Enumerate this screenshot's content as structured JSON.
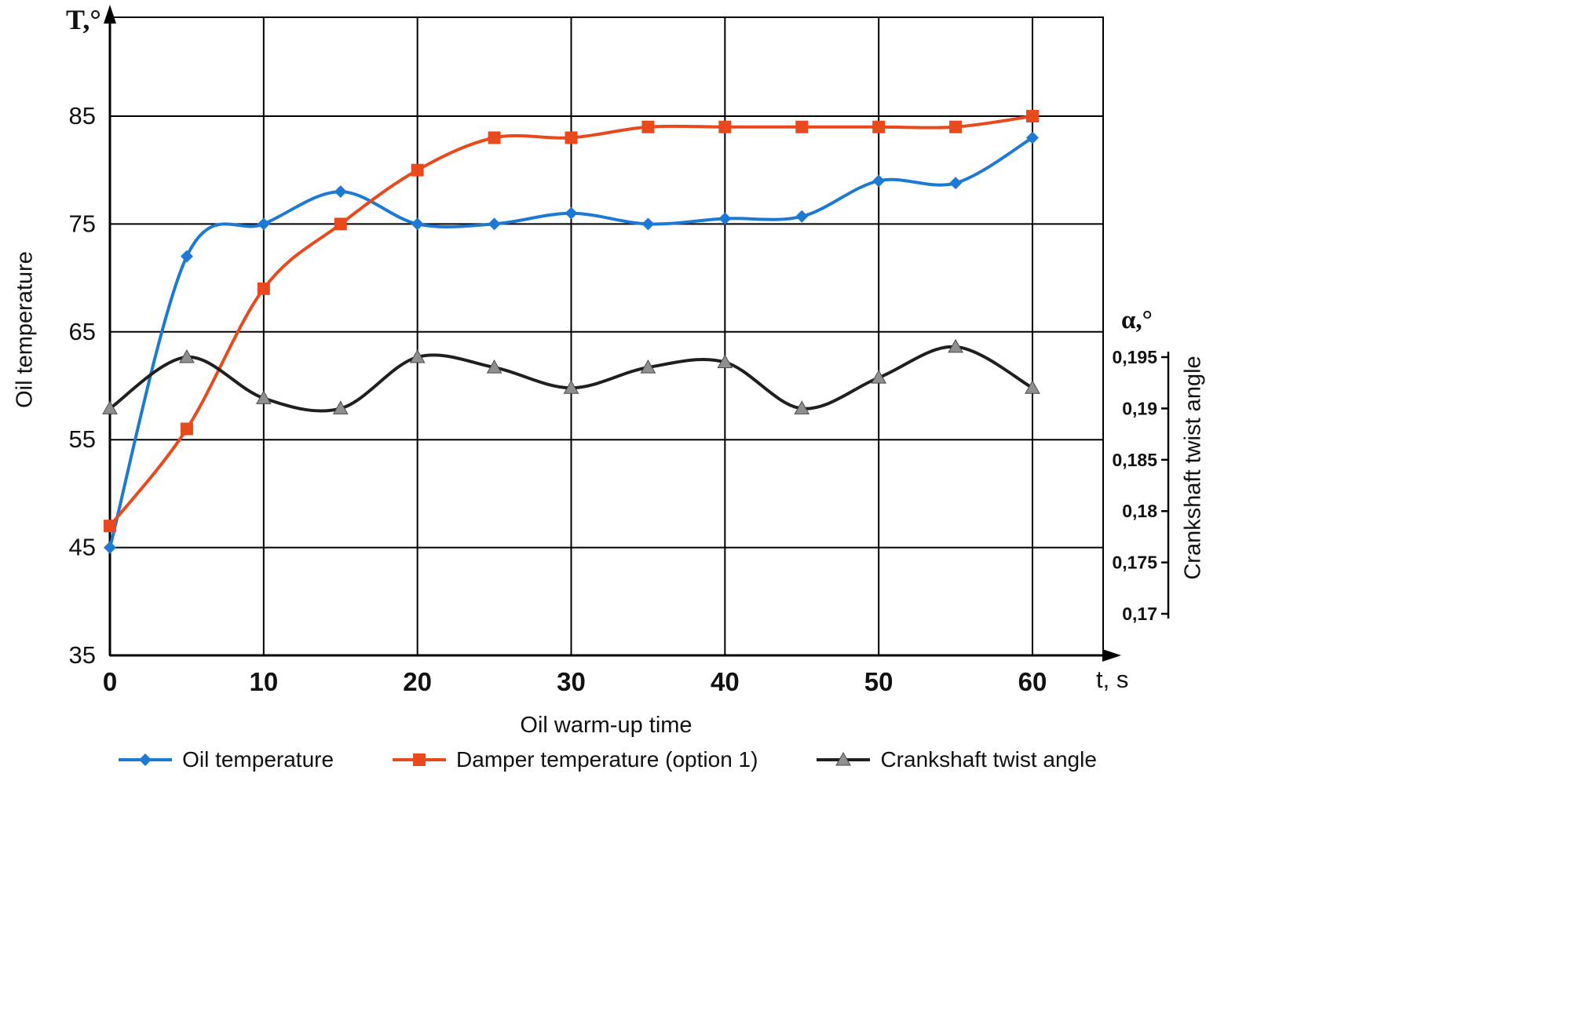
{
  "chart_data": {
    "type": "line",
    "x": [
      0,
      5,
      10,
      15,
      20,
      25,
      30,
      35,
      40,
      45,
      50,
      55,
      60
    ],
    "x_axis": {
      "symbol": "t, s",
      "title": "Oil warm-up time",
      "ticks": [
        0,
        10,
        20,
        30,
        40,
        50,
        60
      ],
      "range": [
        0,
        64.5
      ]
    },
    "left_axis": {
      "symbol": "T,°",
      "title": "Oil temperature",
      "ticks": [
        85,
        75,
        65,
        55,
        45,
        35
      ],
      "range": [
        35,
        94
      ]
    },
    "right_axis": {
      "symbol": "α,°",
      "title": "Crankshaft twist angle",
      "ticks": [
        {
          "label": "0,195",
          "value": 0.195
        },
        {
          "label": "0,19",
          "value": 0.19
        },
        {
          "label": "0,185",
          "value": 0.185
        },
        {
          "label": "0,18",
          "value": 0.18
        },
        {
          "label": "0,175",
          "value": 0.175
        },
        {
          "label": "0,17",
          "value": 0.17
        }
      ],
      "range": [
        0.17,
        0.195
      ]
    },
    "grid": true,
    "legend_position": "bottom",
    "series": [
      {
        "name": "Oil temperature",
        "axis": "left",
        "color": "#1e79d2",
        "marker": "diamond",
        "values": [
          45,
          72,
          75,
          78,
          75,
          75,
          76,
          75,
          75.5,
          75.7,
          79,
          78.8,
          83
        ]
      },
      {
        "name": "Damper temperature (option 1)",
        "axis": "left",
        "color": "#e8491d",
        "marker": "square",
        "values": [
          47,
          56,
          69,
          75,
          80,
          83,
          83,
          84,
          84,
          84,
          84,
          84,
          85
        ]
      },
      {
        "name": "Crankshaft twist angle",
        "axis": "right",
        "color": "#1f1f1f",
        "marker": "triangle",
        "marker_color": "#8f8f8f",
        "values": [
          0.19,
          0.195,
          0.191,
          0.19,
          0.195,
          0.194,
          0.192,
          0.194,
          0.1945,
          0.19,
          0.193,
          0.196,
          0.192
        ]
      }
    ]
  }
}
